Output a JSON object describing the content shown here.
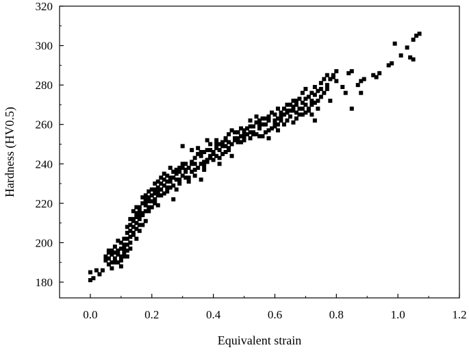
{
  "chart_data": {
    "type": "scatter",
    "title": "",
    "xlabel": "Equivalent strain",
    "ylabel": "Hardness (HV0.5)",
    "xlim": [
      -0.1,
      1.2
    ],
    "ylim": [
      172,
      320
    ],
    "xticks": [
      "0.0",
      "0.2",
      "0.4",
      "0.6",
      "0.8",
      "1.0",
      "1.2"
    ],
    "yticks": [
      "180",
      "200",
      "220",
      "240",
      "260",
      "280",
      "300",
      "320"
    ],
    "grid": false,
    "legend": "none",
    "marker": "square",
    "marker_color": "#000000",
    "points": [
      [
        0.0,
        181
      ],
      [
        0.01,
        182
      ],
      [
        0.0,
        185
      ],
      [
        0.02,
        186
      ],
      [
        0.03,
        184
      ],
      [
        0.04,
        186
      ],
      [
        0.05,
        191
      ],
      [
        0.05,
        193
      ],
      [
        0.06,
        189
      ],
      [
        0.06,
        195
      ],
      [
        0.07,
        190
      ],
      [
        0.07,
        196
      ],
      [
        0.08,
        192
      ],
      [
        0.08,
        198
      ],
      [
        0.09,
        194
      ],
      [
        0.09,
        201
      ],
      [
        0.1,
        188
      ],
      [
        0.1,
        193
      ],
      [
        0.1,
        197
      ],
      [
        0.11,
        195
      ],
      [
        0.11,
        199
      ],
      [
        0.12,
        193
      ],
      [
        0.12,
        202
      ],
      [
        0.12,
        205
      ],
      [
        0.13,
        197
      ],
      [
        0.13,
        200
      ],
      [
        0.13,
        209
      ],
      [
        0.14,
        204
      ],
      [
        0.14,
        208
      ],
      [
        0.14,
        212
      ],
      [
        0.15,
        202
      ],
      [
        0.15,
        210
      ],
      [
        0.15,
        215
      ],
      [
        0.16,
        206
      ],
      [
        0.16,
        212
      ],
      [
        0.16,
        218
      ],
      [
        0.17,
        209
      ],
      [
        0.17,
        214
      ],
      [
        0.18,
        211
      ],
      [
        0.18,
        219
      ],
      [
        0.18,
        224
      ],
      [
        0.19,
        216
      ],
      [
        0.19,
        221
      ],
      [
        0.19,
        226
      ],
      [
        0.2,
        218
      ],
      [
        0.2,
        224
      ],
      [
        0.21,
        222
      ],
      [
        0.21,
        227
      ],
      [
        0.21,
        230
      ],
      [
        0.22,
        219
      ],
      [
        0.22,
        224
      ],
      [
        0.23,
        227
      ],
      [
        0.23,
        233
      ],
      [
        0.24,
        225
      ],
      [
        0.24,
        229
      ],
      [
        0.25,
        231
      ],
      [
        0.25,
        226
      ],
      [
        0.26,
        228
      ],
      [
        0.26,
        233
      ],
      [
        0.27,
        222
      ],
      [
        0.27,
        236
      ],
      [
        0.28,
        232
      ],
      [
        0.28,
        235
      ],
      [
        0.29,
        230
      ],
      [
        0.29,
        238
      ],
      [
        0.3,
        249
      ],
      [
        0.3,
        234
      ],
      [
        0.31,
        236
      ],
      [
        0.31,
        240
      ],
      [
        0.32,
        233
      ],
      [
        0.32,
        238
      ],
      [
        0.33,
        236
      ],
      [
        0.33,
        241
      ],
      [
        0.34,
        234
      ],
      [
        0.34,
        243
      ],
      [
        0.35,
        238
      ],
      [
        0.35,
        245
      ],
      [
        0.36,
        232
      ],
      [
        0.36,
        244
      ],
      [
        0.37,
        239
      ],
      [
        0.37,
        246
      ],
      [
        0.38,
        241
      ],
      [
        0.38,
        252
      ],
      [
        0.39,
        244
      ],
      [
        0.39,
        247
      ],
      [
        0.4,
        242
      ],
      [
        0.4,
        245
      ],
      [
        0.41,
        248
      ],
      [
        0.41,
        250
      ],
      [
        0.42,
        240
      ],
      [
        0.42,
        247
      ],
      [
        0.43,
        245
      ],
      [
        0.43,
        251
      ],
      [
        0.44,
        249
      ],
      [
        0.44,
        253
      ],
      [
        0.45,
        247
      ],
      [
        0.45,
        255
      ],
      [
        0.46,
        250
      ],
      [
        0.46,
        257
      ],
      [
        0.47,
        252
      ],
      [
        0.48,
        251
      ],
      [
        0.48,
        256
      ],
      [
        0.49,
        254
      ],
      [
        0.5,
        257
      ],
      [
        0.5,
        252
      ],
      [
        0.51,
        255
      ],
      [
        0.52,
        253
      ],
      [
        0.52,
        259
      ],
      [
        0.53,
        256
      ],
      [
        0.54,
        261
      ],
      [
        0.54,
        255
      ],
      [
        0.55,
        258
      ],
      [
        0.55,
        262
      ],
      [
        0.56,
        254
      ],
      [
        0.56,
        260
      ],
      [
        0.57,
        263
      ],
      [
        0.58,
        257
      ],
      [
        0.58,
        264
      ],
      [
        0.59,
        258
      ],
      [
        0.6,
        262
      ],
      [
        0.6,
        265
      ],
      [
        0.61,
        257
      ],
      [
        0.61,
        263
      ],
      [
        0.62,
        266
      ],
      [
        0.63,
        260
      ],
      [
        0.63,
        268
      ],
      [
        0.64,
        262
      ],
      [
        0.64,
        266
      ],
      [
        0.65,
        264
      ],
      [
        0.65,
        270
      ],
      [
        0.66,
        261
      ],
      [
        0.66,
        269
      ],
      [
        0.67,
        272
      ],
      [
        0.67,
        266
      ],
      [
        0.68,
        268
      ],
      [
        0.68,
        273
      ],
      [
        0.69,
        265
      ],
      [
        0.69,
        276
      ],
      [
        0.7,
        270
      ],
      [
        0.7,
        278
      ],
      [
        0.71,
        267
      ],
      [
        0.71,
        274
      ],
      [
        0.72,
        276
      ],
      [
        0.72,
        265
      ],
      [
        0.73,
        271
      ],
      [
        0.73,
        279
      ],
      [
        0.74,
        272
      ],
      [
        0.74,
        277
      ],
      [
        0.75,
        274
      ],
      [
        0.75,
        281
      ],
      [
        0.76,
        276
      ],
      [
        0.77,
        280
      ],
      [
        0.77,
        285
      ],
      [
        0.78,
        272
      ],
      [
        0.78,
        283
      ],
      [
        0.79,
        285
      ],
      [
        0.8,
        287
      ],
      [
        0.8,
        282
      ],
      [
        0.82,
        279
      ],
      [
        0.83,
        276
      ],
      [
        0.84,
        286
      ],
      [
        0.85,
        287
      ],
      [
        0.85,
        268
      ],
      [
        0.87,
        280
      ],
      [
        0.88,
        282
      ],
      [
        0.88,
        276
      ],
      [
        0.89,
        283
      ],
      [
        0.92,
        285
      ],
      [
        0.93,
        284
      ],
      [
        0.94,
        286
      ],
      [
        0.97,
        290
      ],
      [
        0.98,
        291
      ],
      [
        0.99,
        301
      ],
      [
        1.01,
        295
      ],
      [
        1.03,
        299
      ],
      [
        1.04,
        294
      ],
      [
        1.05,
        293
      ],
      [
        1.05,
        303
      ],
      [
        1.06,
        305
      ],
      [
        1.07,
        306
      ],
      [
        0.24,
        232
      ],
      [
        0.27,
        229
      ],
      [
        0.35,
        248
      ],
      [
        0.41,
        252
      ],
      [
        0.47,
        256
      ],
      [
        0.53,
        259
      ],
      [
        0.57,
        256
      ],
      [
        0.62,
        264
      ],
      [
        0.66,
        267
      ],
      [
        0.71,
        268
      ],
      [
        0.73,
        262
      ],
      [
        0.76,
        283
      ],
      [
        0.3,
        240
      ],
      [
        0.33,
        247
      ],
      [
        0.38,
        242
      ],
      [
        0.44,
        246
      ],
      [
        0.46,
        244
      ],
      [
        0.5,
        255
      ],
      [
        0.51,
        258
      ],
      [
        0.54,
        264
      ],
      [
        0.58,
        253
      ],
      [
        0.59,
        266
      ],
      [
        0.61,
        268
      ],
      [
        0.64,
        270
      ],
      [
        0.67,
        263
      ],
      [
        0.69,
        271
      ],
      [
        0.72,
        272
      ],
      [
        0.2,
        221
      ],
      [
        0.22,
        228
      ],
      [
        0.26,
        238
      ],
      [
        0.28,
        227
      ],
      [
        0.31,
        233
      ],
      [
        0.36,
        240
      ],
      [
        0.39,
        250
      ],
      [
        0.42,
        243
      ],
      [
        0.48,
        253
      ],
      [
        0.17,
        215
      ],
      [
        0.15,
        213
      ],
      [
        0.13,
        206
      ],
      [
        0.11,
        202
      ],
      [
        0.09,
        196
      ],
      [
        0.07,
        194
      ],
      [
        0.06,
        192
      ],
      [
        0.12,
        199
      ],
      [
        0.14,
        211
      ],
      [
        0.16,
        209
      ],
      [
        0.18,
        216
      ],
      [
        0.19,
        223
      ],
      [
        0.21,
        225
      ],
      [
        0.23,
        230
      ],
      [
        0.25,
        234
      ],
      [
        0.29,
        236
      ],
      [
        0.32,
        231
      ],
      [
        0.34,
        237
      ],
      [
        0.37,
        241
      ],
      [
        0.4,
        246
      ],
      [
        0.43,
        249
      ],
      [
        0.45,
        251
      ],
      [
        0.49,
        258
      ],
      [
        0.52,
        256
      ],
      [
        0.55,
        254
      ],
      [
        0.56,
        263
      ],
      [
        0.6,
        259
      ],
      [
        0.62,
        262
      ],
      [
        0.65,
        267
      ],
      [
        0.68,
        265
      ],
      [
        0.7,
        266
      ],
      [
        0.74,
        268
      ],
      [
        0.77,
        278
      ],
      [
        0.79,
        284
      ],
      [
        0.09,
        190
      ],
      [
        0.1,
        191
      ],
      [
        0.11,
        193
      ],
      [
        0.08,
        195
      ],
      [
        0.12,
        196
      ],
      [
        0.13,
        203
      ],
      [
        0.14,
        205
      ],
      [
        0.15,
        207
      ],
      [
        0.16,
        214
      ],
      [
        0.17,
        220
      ],
      [
        0.18,
        221
      ],
      [
        0.2,
        227
      ],
      [
        0.22,
        226
      ],
      [
        0.24,
        235
      ],
      [
        0.26,
        231
      ],
      [
        0.28,
        237
      ],
      [
        0.3,
        238
      ],
      [
        0.33,
        240
      ],
      [
        0.36,
        246
      ],
      [
        0.38,
        247
      ],
      [
        0.41,
        244
      ],
      [
        0.44,
        252
      ],
      [
        0.47,
        253
      ],
      [
        0.5,
        253
      ],
      [
        0.53,
        255
      ],
      [
        0.57,
        260
      ],
      [
        0.6,
        261
      ],
      [
        0.63,
        265
      ],
      [
        0.66,
        272
      ],
      [
        0.69,
        268
      ],
      [
        0.72,
        270
      ],
      [
        0.75,
        278
      ],
      [
        0.06,
        196
      ],
      [
        0.07,
        187
      ],
      [
        0.08,
        190
      ],
      [
        0.1,
        200
      ],
      [
        0.11,
        197
      ],
      [
        0.12,
        208
      ],
      [
        0.13,
        212
      ],
      [
        0.14,
        216
      ],
      [
        0.15,
        218
      ],
      [
        0.16,
        216
      ],
      [
        0.17,
        223
      ],
      [
        0.18,
        222
      ],
      [
        0.19,
        218
      ],
      [
        0.21,
        220
      ],
      [
        0.22,
        231
      ],
      [
        0.23,
        224
      ],
      [
        0.25,
        228
      ],
      [
        0.27,
        233
      ],
      [
        0.29,
        232
      ],
      [
        0.31,
        237
      ],
      [
        0.34,
        240
      ],
      [
        0.37,
        237
      ],
      [
        0.39,
        243
      ],
      [
        0.42,
        250
      ],
      [
        0.45,
        248
      ],
      [
        0.49,
        251
      ],
      [
        0.52,
        262
      ],
      [
        0.55,
        260
      ],
      [
        0.58,
        262
      ],
      [
        0.61,
        260
      ],
      [
        0.64,
        267
      ],
      [
        0.67,
        270
      ],
      [
        0.7,
        273
      ],
      [
        0.73,
        275
      ]
    ]
  }
}
